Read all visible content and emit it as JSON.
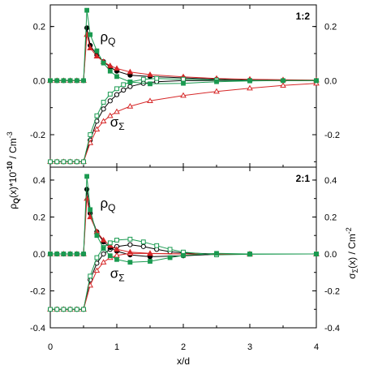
{
  "chart_data": [
    {
      "type": "line",
      "panel_label": "1:2",
      "xlabel": "x/d",
      "ylabel": {
        "main": "ρ",
        "sub": "Q",
        "mid": "(x)*10",
        "sup": "-10",
        "tail": " / Cm",
        "tail_sup": "-3"
      },
      "y2label": {
        "main": "σ",
        "sub": "Σ",
        "tail": "(x) / Cm",
        "tail_sup": "-2"
      },
      "xlim": [
        0,
        4
      ],
      "ylim": [
        -0.32,
        0.28
      ],
      "y2lim": [
        -0.32,
        0.28
      ],
      "x_ticks": [
        "0",
        "1",
        "2",
        "3",
        "4"
      ],
      "y_ticks": [
        "-0.2",
        "0.0",
        "0.2"
      ],
      "y2_ticks": [
        "-0.2",
        "0.0",
        "0.2"
      ],
      "annotations": [
        {
          "main": "ρ",
          "sub": "Q",
          "x": 0.75,
          "y": 0.145
        },
        {
          "main": "σ",
          "sub": "Σ",
          "x": 0.9,
          "y": -0.17
        }
      ],
      "series": [
        {
          "color": "#000000",
          "marker": "circle",
          "rho": [
            [
              0.0,
              0
            ],
            [
              0.1,
              0
            ],
            [
              0.2,
              0
            ],
            [
              0.3,
              0
            ],
            [
              0.4,
              0
            ],
            [
              0.5,
              0
            ],
            [
              0.55,
              0.195
            ],
            [
              0.6,
              0.13
            ],
            [
              0.7,
              0.095
            ],
            [
              0.8,
              0.07
            ],
            [
              0.9,
              0.05
            ],
            [
              1.0,
              0.035
            ],
            [
              1.2,
              0.02
            ],
            [
              1.5,
              0.015
            ],
            [
              2.0,
              0.01
            ],
            [
              2.5,
              0.005
            ],
            [
              3.0,
              0.002
            ],
            [
              3.5,
              0.0
            ],
            [
              4.0,
              0.0
            ]
          ],
          "sigma": [
            [
              0.0,
              -0.3
            ],
            [
              0.1,
              -0.3
            ],
            [
              0.2,
              -0.3
            ],
            [
              0.3,
              -0.3
            ],
            [
              0.4,
              -0.3
            ],
            [
              0.5,
              -0.3
            ],
            [
              0.6,
              -0.22
            ],
            [
              0.7,
              -0.15
            ],
            [
              0.8,
              -0.105
            ],
            [
              0.9,
              -0.075
            ],
            [
              1.0,
              -0.052
            ],
            [
              1.1,
              -0.035
            ],
            [
              1.2,
              -0.022
            ],
            [
              1.4,
              -0.01
            ],
            [
              1.6,
              -0.004
            ],
            [
              2.0,
              0.0
            ],
            [
              2.5,
              0.0
            ],
            [
              3.0,
              0.0
            ],
            [
              4.0,
              0.0
            ]
          ]
        },
        {
          "color": "#d62728",
          "marker": "triangle",
          "rho": [
            [
              0.0,
              0
            ],
            [
              0.1,
              0
            ],
            [
              0.2,
              0
            ],
            [
              0.3,
              0
            ],
            [
              0.4,
              0
            ],
            [
              0.5,
              0
            ],
            [
              0.55,
              0.17
            ],
            [
              0.6,
              0.12
            ],
            [
              0.7,
              0.09
            ],
            [
              0.8,
              0.07
            ],
            [
              0.9,
              0.055
            ],
            [
              1.0,
              0.045
            ],
            [
              1.2,
              0.032
            ],
            [
              1.5,
              0.022
            ],
            [
              2.0,
              0.014
            ],
            [
              2.5,
              0.008
            ],
            [
              3.0,
              0.005
            ],
            [
              3.5,
              0.003
            ],
            [
              4.0,
              0.002
            ]
          ],
          "sigma": [
            [
              0.0,
              -0.3
            ],
            [
              0.1,
              -0.3
            ],
            [
              0.2,
              -0.3
            ],
            [
              0.3,
              -0.3
            ],
            [
              0.4,
              -0.3
            ],
            [
              0.5,
              -0.3
            ],
            [
              0.6,
              -0.23
            ],
            [
              0.7,
              -0.18
            ],
            [
              0.8,
              -0.15
            ],
            [
              0.9,
              -0.13
            ],
            [
              1.0,
              -0.115
            ],
            [
              1.2,
              -0.095
            ],
            [
              1.5,
              -0.075
            ],
            [
              2.0,
              -0.055
            ],
            [
              2.5,
              -0.04
            ],
            [
              3.0,
              -0.028
            ],
            [
              3.5,
              -0.018
            ],
            [
              4.0,
              -0.01
            ]
          ]
        },
        {
          "color": "#1a9a50",
          "marker": "square",
          "rho": [
            [
              0.0,
              0
            ],
            [
              0.1,
              0
            ],
            [
              0.2,
              0
            ],
            [
              0.3,
              0
            ],
            [
              0.4,
              0
            ],
            [
              0.5,
              0
            ],
            [
              0.55,
              0.26
            ],
            [
              0.6,
              0.17
            ],
            [
              0.7,
              0.11
            ],
            [
              0.8,
              0.065
            ],
            [
              0.9,
              0.035
            ],
            [
              1.0,
              0.015
            ],
            [
              1.2,
              -0.005
            ],
            [
              1.5,
              -0.012
            ],
            [
              2.0,
              -0.01
            ],
            [
              2.5,
              -0.004
            ],
            [
              3.0,
              -0.001
            ],
            [
              3.5,
              0.0
            ],
            [
              4.0,
              0.0
            ]
          ],
          "sigma": [
            [
              0.0,
              -0.3
            ],
            [
              0.1,
              -0.3
            ],
            [
              0.2,
              -0.3
            ],
            [
              0.3,
              -0.3
            ],
            [
              0.4,
              -0.3
            ],
            [
              0.5,
              -0.3
            ],
            [
              0.6,
              -0.2
            ],
            [
              0.7,
              -0.13
            ],
            [
              0.8,
              -0.08
            ],
            [
              0.9,
              -0.05
            ],
            [
              1.0,
              -0.03
            ],
            [
              1.1,
              -0.015
            ],
            [
              1.2,
              -0.005
            ],
            [
              1.4,
              0.005
            ],
            [
              1.6,
              0.008
            ],
            [
              2.0,
              0.005
            ],
            [
              2.5,
              0.002
            ],
            [
              3.0,
              0.0
            ],
            [
              4.0,
              0.0
            ]
          ]
        }
      ]
    },
    {
      "type": "line",
      "panel_label": "2:1",
      "xlabel": "x/d",
      "xlim": [
        0,
        4
      ],
      "ylim": [
        -0.4,
        0.47
      ],
      "y2lim": [
        -0.4,
        0.47
      ],
      "x_ticks": [
        "0",
        "1",
        "2",
        "3",
        "4"
      ],
      "y_ticks": [
        "-0.4",
        "-0.2",
        "0.0",
        "0.2",
        "0.4"
      ],
      "y2_ticks": [
        "-0.4",
        "-0.2",
        "0.0",
        "0.2",
        "0.4"
      ],
      "annotations": [
        {
          "main": "ρ",
          "sub": "Q",
          "x": 0.75,
          "y": 0.25
        },
        {
          "main": "σ",
          "sub": "Σ",
          "x": 0.9,
          "y": -0.13
        }
      ],
      "series": [
        {
          "color": "#000000",
          "marker": "circle",
          "rho": [
            [
              0.0,
              0
            ],
            [
              0.1,
              0
            ],
            [
              0.2,
              0
            ],
            [
              0.3,
              0
            ],
            [
              0.4,
              0
            ],
            [
              0.5,
              0
            ],
            [
              0.55,
              0.35
            ],
            [
              0.6,
              0.22
            ],
            [
              0.7,
              0.12
            ],
            [
              0.8,
              0.065
            ],
            [
              0.9,
              0.035
            ],
            [
              1.0,
              0.015
            ],
            [
              1.2,
              -0.005
            ],
            [
              1.5,
              -0.015
            ],
            [
              2.0,
              -0.01
            ],
            [
              2.5,
              -0.002
            ],
            [
              3.0,
              0.0
            ],
            [
              4.0,
              0.0
            ]
          ],
          "sigma": [
            [
              0.0,
              -0.3
            ],
            [
              0.1,
              -0.3
            ],
            [
              0.2,
              -0.3
            ],
            [
              0.3,
              -0.3
            ],
            [
              0.4,
              -0.3
            ],
            [
              0.5,
              -0.3
            ],
            [
              0.6,
              -0.14
            ],
            [
              0.7,
              -0.05
            ],
            [
              0.8,
              0.0
            ],
            [
              0.9,
              0.025
            ],
            [
              1.0,
              0.04
            ],
            [
              1.2,
              0.05
            ],
            [
              1.4,
              0.04
            ],
            [
              1.6,
              0.025
            ],
            [
              1.8,
              0.012
            ],
            [
              2.0,
              0.005
            ],
            [
              2.5,
              0.0
            ],
            [
              3.0,
              0.0
            ],
            [
              4.0,
              0.0
            ]
          ]
        },
        {
          "color": "#d62728",
          "marker": "triangle",
          "rho": [
            [
              0.0,
              0
            ],
            [
              0.1,
              0
            ],
            [
              0.2,
              0
            ],
            [
              0.3,
              0
            ],
            [
              0.4,
              0
            ],
            [
              0.5,
              0
            ],
            [
              0.55,
              0.3
            ],
            [
              0.6,
              0.2
            ],
            [
              0.7,
              0.12
            ],
            [
              0.8,
              0.075
            ],
            [
              0.9,
              0.045
            ],
            [
              1.0,
              0.025
            ],
            [
              1.2,
              0.01
            ],
            [
              1.5,
              0.003
            ],
            [
              2.0,
              0.0
            ],
            [
              3.0,
              0.0
            ],
            [
              4.0,
              0.0
            ]
          ],
          "sigma": [
            [
              0.0,
              -0.3
            ],
            [
              0.1,
              -0.3
            ],
            [
              0.2,
              -0.3
            ],
            [
              0.3,
              -0.3
            ],
            [
              0.4,
              -0.3
            ],
            [
              0.5,
              -0.3
            ],
            [
              0.6,
              -0.17
            ],
            [
              0.7,
              -0.09
            ],
            [
              0.8,
              -0.045
            ],
            [
              0.9,
              -0.02
            ],
            [
              1.0,
              -0.008
            ],
            [
              1.2,
              0.003
            ],
            [
              1.5,
              0.002
            ],
            [
              2.0,
              0.0
            ],
            [
              3.0,
              0.0
            ],
            [
              4.0,
              0.0
            ]
          ]
        },
        {
          "color": "#1a9a50",
          "marker": "square",
          "rho": [
            [
              0.0,
              0
            ],
            [
              0.1,
              0
            ],
            [
              0.2,
              0
            ],
            [
              0.3,
              0
            ],
            [
              0.4,
              0
            ],
            [
              0.5,
              0
            ],
            [
              0.55,
              0.42
            ],
            [
              0.6,
              0.24
            ],
            [
              0.7,
              0.1
            ],
            [
              0.8,
              0.03
            ],
            [
              0.9,
              -0.01
            ],
            [
              1.0,
              -0.03
            ],
            [
              1.2,
              -0.045
            ],
            [
              1.5,
              -0.04
            ],
            [
              1.8,
              -0.02
            ],
            [
              2.0,
              -0.008
            ],
            [
              2.5,
              0.003
            ],
            [
              3.0,
              0.0
            ],
            [
              4.0,
              0.0
            ]
          ],
          "sigma": [
            [
              0.0,
              -0.3
            ],
            [
              0.1,
              -0.3
            ],
            [
              0.2,
              -0.3
            ],
            [
              0.3,
              -0.3
            ],
            [
              0.4,
              -0.3
            ],
            [
              0.5,
              -0.3
            ],
            [
              0.6,
              -0.12
            ],
            [
              0.7,
              -0.02
            ],
            [
              0.8,
              0.035
            ],
            [
              0.9,
              0.06
            ],
            [
              1.0,
              0.075
            ],
            [
              1.2,
              0.08
            ],
            [
              1.4,
              0.065
            ],
            [
              1.6,
              0.045
            ],
            [
              1.8,
              0.025
            ],
            [
              2.0,
              0.01
            ],
            [
              2.5,
              -0.005
            ],
            [
              3.0,
              -0.002
            ],
            [
              4.0,
              0.0
            ]
          ]
        }
      ]
    }
  ]
}
